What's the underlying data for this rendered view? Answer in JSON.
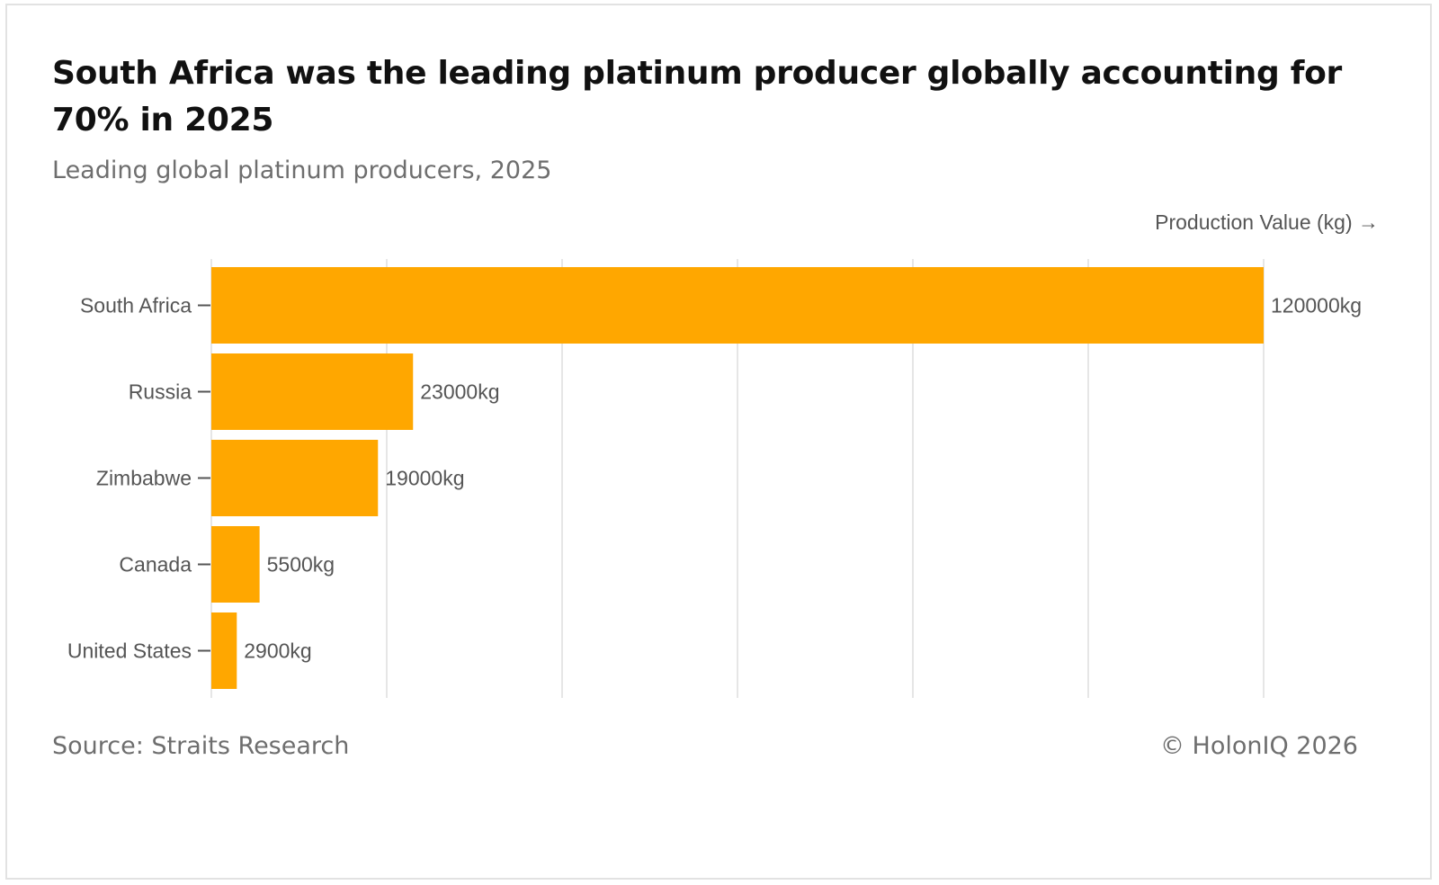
{
  "header": {
    "title": "South Africa was the leading platinum producer globally accounting for 70% in 2025",
    "subtitle": "Leading global platinum producers, 2025"
  },
  "footer": {
    "source": "Source: Straits Research",
    "copyright": "© HolonIQ 2026"
  },
  "colors": {
    "bar": "#FFA700",
    "grid": "#e6e6e6",
    "label": "#555555"
  },
  "chart_data": {
    "type": "bar",
    "orientation": "horizontal",
    "title": "South Africa was the leading platinum producer globally accounting for 70% in 2025",
    "subtitle": "Leading global platinum producers, 2025",
    "xlabel": "Production Value (kg) →",
    "ylabel": "",
    "categories": [
      "South Africa",
      "Russia",
      "Zimbabwe",
      "Canada",
      "United States"
    ],
    "values": [
      120000,
      23000,
      19000,
      5500,
      2900
    ],
    "data_labels": [
      "120000kg",
      "23000kg",
      "19000kg",
      "5500kg",
      "2900kg"
    ],
    "xlim": [
      0,
      120000
    ],
    "x_gridlines": [
      0,
      20000,
      40000,
      60000,
      80000,
      100000,
      120000
    ],
    "grid": true,
    "legend": "none"
  }
}
